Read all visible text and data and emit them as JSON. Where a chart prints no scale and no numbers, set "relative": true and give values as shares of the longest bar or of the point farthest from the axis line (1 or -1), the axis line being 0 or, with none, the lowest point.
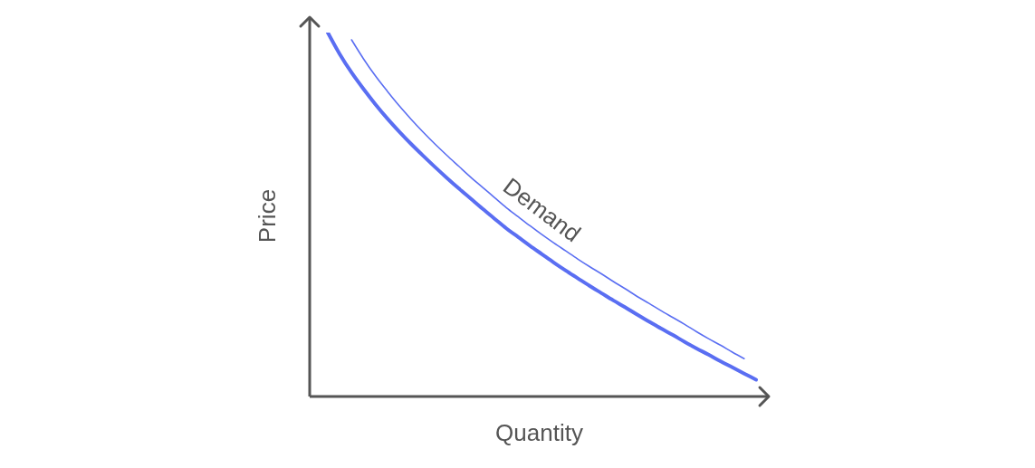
{
  "chart_data": {
    "type": "line",
    "relative": true,
    "xlabel": "Quantity",
    "ylabel": "Price",
    "marker": "none",
    "line_style": "solid",
    "categories": [
      null,
      null,
      null,
      null,
      null,
      null,
      null,
      null,
      null,
      null,
      null,
      null,
      null,
      null,
      null,
      null,
      null,
      null,
      null,
      null,
      null,
      null,
      null,
      null,
      null,
      null,
      null,
      null,
      null,
      null,
      null,
      null,
      null,
      null,
      null,
      null,
      null
    ],
    "series": [
      {
        "color": "#5a6ef2",
        "values": [
          1,
          0.941,
          0.89,
          0.845,
          0.803,
          0.764,
          0.728,
          0.694,
          0.662,
          0.631,
          0.601,
          0.572,
          0.544,
          0.516,
          0.489,
          0.462,
          0.438,
          0.414,
          0.391,
          0.368,
          0.346,
          0.325,
          0.304,
          0.284,
          0.264,
          0.245,
          0.225,
          0.206,
          0.187,
          0.169,
          0.15,
          0.132,
          0.115,
          0.097,
          0.08,
          0.063,
          0.046
        ]
      },
      {
        "name": "Demand",
        "color": "#5a6ef2",
        "values": [
          null,
          null,
          0.98,
          0.928,
          0.881,
          0.839,
          0.799,
          0.762,
          0.727,
          0.694,
          0.663,
          0.633,
          0.603,
          0.575,
          0.547,
          0.519,
          0.494,
          0.469,
          0.445,
          0.422,
          0.4,
          0.378,
          0.357,
          0.337,
          0.316,
          0.296,
          0.275,
          0.256,
          0.236,
          0.217,
          0.198,
          0.178,
          0.159,
          0.141,
          0.122,
          0.104,
          null
        ]
      }
    ]
  }
}
